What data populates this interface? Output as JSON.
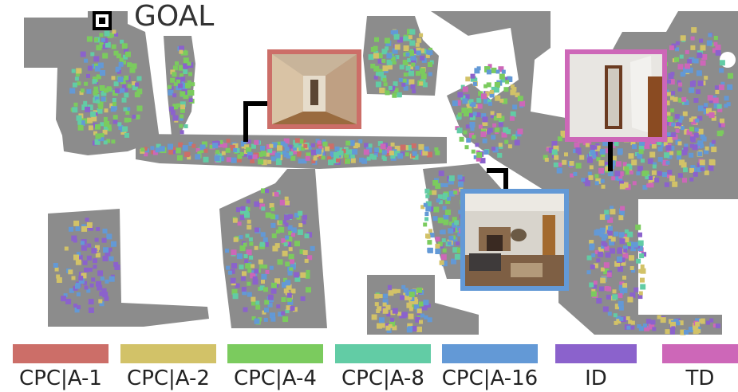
{
  "goal": {
    "label": "GOAL"
  },
  "legend": [
    {
      "label": "CPC|A-1",
      "color": "#cc6e68"
    },
    {
      "label": "CPC|A-2",
      "color": "#d2c268"
    },
    {
      "label": "CPC|A-4",
      "color": "#7bcb5e"
    },
    {
      "label": "CPC|A-8",
      "color": "#62cca5"
    },
    {
      "label": "CPC|A-16",
      "color": "#6399d6"
    },
    {
      "label": "ID",
      "color": "#8b62cc"
    },
    {
      "label": "TD",
      "color": "#cd67b8"
    }
  ],
  "colors": {
    "floor": "#8c8c8c",
    "wall": "#ffffff",
    "connector": "#000000"
  },
  "views": [
    {
      "name": "hallway-view",
      "frame_color": "#cc6e68",
      "icon": "hallway-photo"
    },
    {
      "name": "living-room-view",
      "frame_color": "#6399d6",
      "icon": "living-room-photo"
    },
    {
      "name": "room-view",
      "frame_color": "#cd67b8",
      "icon": "room-photo"
    }
  ]
}
